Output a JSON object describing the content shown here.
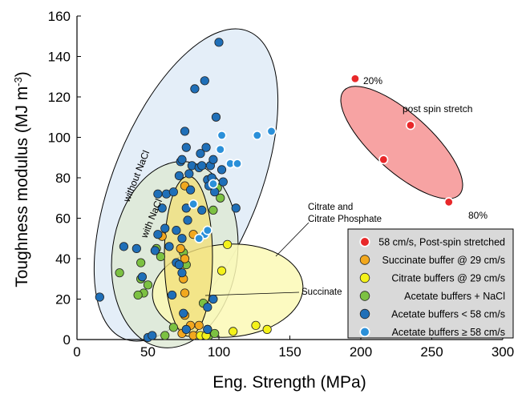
{
  "chart_data": {
    "type": "scatter",
    "xlabel": "Eng. Strength (MPa)",
    "ylabel_main": "Toughness modulus (MJ m",
    "ylabel_sup": "-3",
    "ylabel_close": ")",
    "xlim": [
      0,
      300
    ],
    "ylim": [
      0,
      160
    ],
    "x_ticks": [
      "0",
      "50",
      "100",
      "150",
      "200",
      "250",
      "300"
    ],
    "y_ticks": [
      "0",
      "20",
      "40",
      "60",
      "80",
      "100",
      "120",
      "140",
      "160"
    ],
    "grid": false,
    "legend_position": "bottom-right",
    "colors": {
      "post_spin": "#e8282a",
      "succinate": "#f2a81e",
      "citrate": "#f4f21a",
      "acetate_nacl": "#7cc142",
      "acetate_lt58": "#1f6fb8",
      "acetate_ge58": "#2b90d9"
    },
    "annotations": {
      "post_spin_stretch": "post spin stretch",
      "pct20": "20%",
      "pct80": "80%",
      "without_nacl": "without NaCl",
      "with_nacl": "with NaCl",
      "citrate_line1": "Citrate and",
      "citrate_line2": "Citrate Phosphate",
      "succinate": "Succinate"
    },
    "series": [
      {
        "name": "58 cm/s, Post-spin stretched",
        "color": "#e8282a",
        "white_edge": true,
        "points": [
          [
            196,
            129
          ],
          [
            235,
            106
          ],
          [
            216,
            89
          ],
          [
            262,
            68
          ]
        ]
      },
      {
        "name": "Succinate buffer @ 29 cm/s",
        "color": "#f2a81e",
        "points": [
          [
            60,
            51
          ],
          [
            76,
            76
          ],
          [
            82,
            52
          ],
          [
            73,
            45
          ],
          [
            76,
            40
          ],
          [
            75,
            30
          ],
          [
            76,
            23
          ],
          [
            76,
            12
          ],
          [
            80,
            7
          ],
          [
            86,
            7
          ],
          [
            74,
            3
          ],
          [
            82,
            2
          ]
        ]
      },
      {
        "name": "Citrate buffers @ 29 cm/s",
        "color": "#f4f21a",
        "points": [
          [
            106,
            47
          ],
          [
            102,
            34
          ],
          [
            87,
            2
          ],
          [
            91,
            2
          ],
          [
            110,
            4
          ],
          [
            126,
            7
          ],
          [
            134,
            5
          ],
          [
            92,
            5
          ]
        ]
      },
      {
        "name": "Acetate buffers + NaCl",
        "color": "#7cc142",
        "points": [
          [
            101,
            70
          ],
          [
            99,
            75
          ],
          [
            96,
            64
          ],
          [
            59,
            41
          ],
          [
            56,
            45
          ],
          [
            45,
            38
          ],
          [
            30,
            33
          ],
          [
            50,
            27
          ],
          [
            47,
            23
          ],
          [
            43,
            22
          ],
          [
            45,
            30
          ],
          [
            75,
            43
          ],
          [
            77,
            37
          ],
          [
            68,
            6
          ],
          [
            62,
            2
          ],
          [
            93,
            2
          ],
          [
            97,
            3
          ],
          [
            89,
            18
          ]
        ]
      },
      {
        "name": "Acetate buffers < 58 cm/s",
        "color": "#1f6fb8",
        "points": [
          [
            16,
            21
          ],
          [
            33,
            46
          ],
          [
            42,
            45
          ],
          [
            46,
            31
          ],
          [
            50,
            1
          ],
          [
            53,
            2
          ],
          [
            55,
            44
          ],
          [
            57,
            72
          ],
          [
            60,
            65
          ],
          [
            63,
            72
          ],
          [
            65,
            46
          ],
          [
            67,
            22
          ],
          [
            70,
            54
          ],
          [
            70,
            38
          ],
          [
            72,
            37
          ],
          [
            73,
            88
          ],
          [
            74,
            33
          ],
          [
            75,
            13
          ],
          [
            76,
            103
          ],
          [
            74,
            89
          ],
          [
            77,
            95
          ],
          [
            77,
            65
          ],
          [
            78,
            59
          ],
          [
            79,
            82
          ],
          [
            80,
            74
          ],
          [
            81,
            86
          ],
          [
            83,
            124
          ],
          [
            86,
            85
          ],
          [
            88,
            64
          ],
          [
            88,
            86
          ],
          [
            90,
            128
          ],
          [
            91,
            95
          ],
          [
            92,
            79
          ],
          [
            93,
            76
          ],
          [
            94,
            86
          ],
          [
            95,
            80
          ],
          [
            96,
            89
          ],
          [
            97,
            73
          ],
          [
            98,
            110
          ],
          [
            100,
            147
          ],
          [
            102,
            84
          ],
          [
            103,
            78
          ],
          [
            96,
            20
          ],
          [
            92,
            16
          ],
          [
            92,
            5
          ],
          [
            74,
            50
          ],
          [
            68,
            73
          ],
          [
            72,
            81
          ],
          [
            112,
            65
          ],
          [
            77,
            5
          ],
          [
            87,
            92
          ],
          [
            62,
            55
          ],
          [
            57,
            52
          ]
        ]
      },
      {
        "name": "Acetate buffers ≥ 58 cm/s",
        "color": "#2b90d9",
        "white_edge": true,
        "points": [
          [
            101,
            94
          ],
          [
            102,
            101
          ],
          [
            108,
            87
          ],
          [
            113,
            87
          ],
          [
            127,
            101
          ],
          [
            137,
            103
          ],
          [
            96,
            77
          ],
          [
            90,
            52
          ],
          [
            86,
            50
          ],
          [
            82,
            67
          ],
          [
            92,
            54
          ]
        ]
      }
    ]
  }
}
